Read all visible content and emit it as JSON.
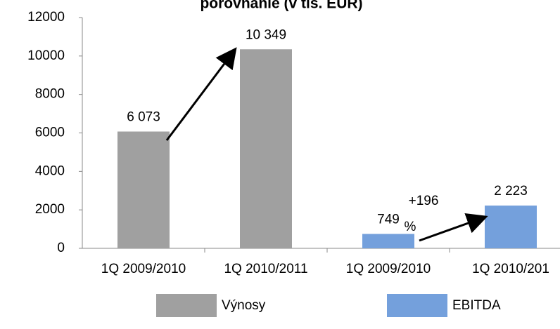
{
  "chart_data": {
    "type": "bar",
    "title": "porovnanie (v tis. EUR)",
    "categories": [
      "1Q 2009/2010",
      "1Q 2010/2011",
      "1Q 2009/2010",
      "1Q 2010/201"
    ],
    "series": [
      {
        "name": "Výnosy",
        "color": "#a0a0a0",
        "values": [
          6073,
          10349,
          null,
          null
        ],
        "value_labels": [
          "6 073",
          "10 349",
          null,
          null
        ]
      },
      {
        "name": "EBITDA",
        "color": "#74a0dc",
        "values": [
          null,
          null,
          749,
          2223
        ],
        "value_labels": [
          null,
          null,
          "749",
          "2 223"
        ]
      }
    ],
    "annotations": [
      "+196",
      "%"
    ],
    "ylim": [
      0,
      12000
    ],
    "yticks": [
      0,
      2000,
      4000,
      6000,
      8000,
      10000,
      12000
    ],
    "grid": false
  }
}
